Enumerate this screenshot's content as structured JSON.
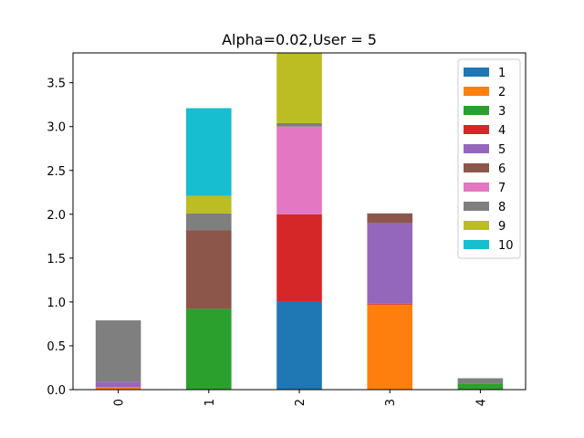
{
  "chart_data": {
    "type": "bar",
    "stacked": true,
    "title": "Alpha=0.02,User = 5",
    "xlabel": "",
    "ylabel": "",
    "categories": [
      "0",
      "1",
      "2",
      "3",
      "4"
    ],
    "ylim": [
      0,
      3.84
    ],
    "yticks": [
      "0.0",
      "0.5",
      "1.0",
      "1.5",
      "2.0",
      "2.5",
      "3.0",
      "3.5"
    ],
    "grid": false,
    "legend_position": "top-right",
    "series": [
      {
        "name": "1",
        "color": "#1f77b4",
        "values": [
          0.0,
          0.0,
          1.0,
          0.0,
          0.0
        ]
      },
      {
        "name": "2",
        "color": "#ff7f0e",
        "values": [
          0.03,
          0.0,
          0.0,
          0.97,
          0.0
        ]
      },
      {
        "name": "3",
        "color": "#2ca02c",
        "values": [
          0.0,
          0.92,
          0.0,
          0.0,
          0.07
        ]
      },
      {
        "name": "4",
        "color": "#d62728",
        "values": [
          0.0,
          0.0,
          1.0,
          0.01,
          0.0
        ]
      },
      {
        "name": "5",
        "color": "#9467bd",
        "values": [
          0.06,
          0.0,
          0.0,
          0.92,
          0.0
        ]
      },
      {
        "name": "6",
        "color": "#8c564b",
        "values": [
          0.0,
          0.9,
          0.0,
          0.11,
          0.0
        ]
      },
      {
        "name": "7",
        "color": "#e377c2",
        "values": [
          0.0,
          0.0,
          1.0,
          0.0,
          0.0
        ]
      },
      {
        "name": "8",
        "color": "#7f7f7f",
        "values": [
          0.7,
          0.19,
          0.04,
          0.0,
          0.06
        ]
      },
      {
        "name": "9",
        "color": "#bcbd22",
        "values": [
          0.0,
          0.2,
          0.8,
          0.0,
          0.0
        ]
      },
      {
        "name": "10",
        "color": "#17becf",
        "values": [
          0.0,
          1.0,
          0.0,
          0.0,
          0.0
        ]
      }
    ]
  }
}
